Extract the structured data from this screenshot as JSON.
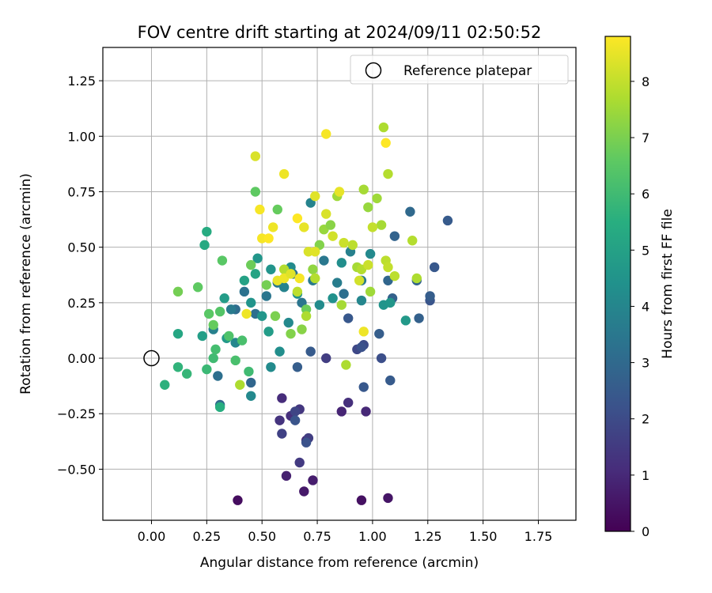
{
  "chart_data": {
    "type": "scatter",
    "title": "FOV centre drift starting at 2024/09/11 02:50:52",
    "xlabel": "Angular distance from reference (arcmin)",
    "ylabel": "Rotation from reference (arcmin)",
    "xlim": [
      -0.22,
      1.92
    ],
    "ylim": [
      -0.73,
      1.4
    ],
    "x_ticks": [
      "0.00",
      "0.25",
      "0.50",
      "0.75",
      "1.00",
      "1.25",
      "1.50",
      "1.75"
    ],
    "x_tick_values": [
      0,
      0.25,
      0.5,
      0.75,
      1.0,
      1.25,
      1.5,
      1.75
    ],
    "y_ticks": [
      "−0.50",
      "−0.25",
      "0.00",
      "0.25",
      "0.50",
      "0.75",
      "1.00",
      "1.25"
    ],
    "y_tick_values": [
      -0.5,
      -0.25,
      0,
      0.25,
      0.5,
      0.75,
      1.0,
      1.25
    ],
    "grid": true,
    "legend": {
      "label": "Reference platepar",
      "position": "top-right"
    },
    "colorbar": {
      "label": "Hours from first FF file",
      "colormap": "viridis",
      "range": [
        0,
        8.8
      ],
      "ticks": [
        "0",
        "1",
        "2",
        "3",
        "4",
        "5",
        "6",
        "7",
        "8"
      ],
      "tick_values": [
        0,
        1,
        2,
        3,
        4,
        5,
        6,
        7,
        8
      ]
    },
    "reference_point": {
      "x": 0,
      "y": 0
    },
    "series": [
      {
        "name": "drift",
        "points": [
          [
            0.39,
            -0.64,
            0.3
          ],
          [
            0.95,
            -0.64,
            0.4
          ],
          [
            1.07,
            -0.63,
            0.5
          ],
          [
            0.69,
            -0.6,
            0.6
          ],
          [
            0.73,
            -0.55,
            0.7
          ],
          [
            0.61,
            -0.53,
            0.8
          ],
          [
            0.86,
            -0.24,
            0.9
          ],
          [
            0.97,
            -0.24,
            1.0
          ],
          [
            0.7,
            -0.37,
            1.0
          ],
          [
            0.59,
            -0.18,
            1.1
          ],
          [
            0.89,
            -0.2,
            1.2
          ],
          [
            0.63,
            -0.26,
            1.2
          ],
          [
            0.58,
            -0.28,
            1.3
          ],
          [
            0.67,
            -0.23,
            1.4
          ],
          [
            0.67,
            -0.47,
            1.5
          ],
          [
            0.71,
            -0.36,
            1.6
          ],
          [
            0.59,
            -0.34,
            1.7
          ],
          [
            0.79,
            0.0,
            1.6
          ],
          [
            0.65,
            -0.24,
            1.8
          ],
          [
            0.93,
            0.04,
            1.9
          ],
          [
            0.96,
            0.06,
            2.0
          ],
          [
            1.04,
            0.0,
            2.1
          ],
          [
            0.7,
            -0.38,
            2.2
          ],
          [
            0.65,
            -0.28,
            2.3
          ],
          [
            0.96,
            -0.13,
            2.4
          ],
          [
            1.08,
            -0.1,
            2.5
          ],
          [
            0.66,
            -0.04,
            2.6
          ],
          [
            0.72,
            0.03,
            2.5
          ],
          [
            0.89,
            0.18,
            2.4
          ],
          [
            1.03,
            0.11,
            2.6
          ],
          [
            1.21,
            0.18,
            2.7
          ],
          [
            1.26,
            0.26,
            2.3
          ],
          [
            1.28,
            0.41,
            2.4
          ],
          [
            1.34,
            0.62,
            2.5
          ],
          [
            1.26,
            0.28,
            2.6
          ],
          [
            1.2,
            0.35,
            2.8
          ],
          [
            1.07,
            0.35,
            2.9
          ],
          [
            1.09,
            0.27,
            2.7
          ],
          [
            1.17,
            0.66,
            3.0
          ],
          [
            1.1,
            0.55,
            2.8
          ],
          [
            0.95,
            0.05,
            2.2
          ],
          [
            0.45,
            -0.11,
            2.9
          ],
          [
            0.31,
            -0.21,
            3.0
          ],
          [
            0.3,
            -0.08,
            3.2
          ],
          [
            0.38,
            0.22,
            3.1
          ],
          [
            0.42,
            0.3,
            3.3
          ],
          [
            0.47,
            0.2,
            3.2
          ],
          [
            0.52,
            0.28,
            3.4
          ],
          [
            0.57,
            0.34,
            3.5
          ],
          [
            0.64,
            0.38,
            3.3
          ],
          [
            0.68,
            0.25,
            3.4
          ],
          [
            0.73,
            0.35,
            3.6
          ],
          [
            0.78,
            0.44,
            3.5
          ],
          [
            0.84,
            0.34,
            3.7
          ],
          [
            0.87,
            0.29,
            3.2
          ],
          [
            0.9,
            0.48,
            3.8
          ],
          [
            0.95,
            0.35,
            3.6
          ],
          [
            0.6,
            0.32,
            3.9
          ],
          [
            0.72,
            0.7,
            3.9
          ],
          [
            0.36,
            0.22,
            3.6
          ],
          [
            0.28,
            0.13,
            3.8
          ],
          [
            0.38,
            0.07,
            4.0
          ],
          [
            0.45,
            -0.17,
            4.1
          ],
          [
            0.54,
            -0.04,
            4.2
          ],
          [
            0.58,
            0.03,
            4.3
          ],
          [
            0.62,
            0.16,
            4.1
          ],
          [
            0.66,
            0.29,
            4.4
          ],
          [
            0.76,
            0.24,
            4.2
          ],
          [
            0.82,
            0.27,
            4.4
          ],
          [
            0.95,
            0.26,
            4.0
          ],
          [
            1.05,
            0.24,
            4.5
          ],
          [
            1.08,
            0.25,
            4.6
          ],
          [
            1.15,
            0.17,
            4.7
          ],
          [
            0.86,
            0.43,
            4.3
          ],
          [
            0.99,
            0.47,
            4.1
          ],
          [
            0.63,
            0.41,
            4.2
          ],
          [
            0.54,
            0.4,
            4.5
          ],
          [
            0.48,
            0.45,
            4.6
          ],
          [
            0.45,
            0.25,
            4.5
          ],
          [
            0.5,
            0.19,
            4.6
          ],
          [
            0.53,
            0.12,
            4.8
          ],
          [
            0.34,
            0.09,
            4.7
          ],
          [
            0.23,
            0.1,
            4.9
          ],
          [
            0.33,
            0.27,
            4.8
          ],
          [
            0.42,
            0.35,
            5.0
          ],
          [
            0.47,
            0.38,
            5.1
          ],
          [
            0.12,
            0.11,
            5.2
          ],
          [
            0.24,
            0.51,
            5.3
          ],
          [
            0.25,
            0.57,
            5.4
          ],
          [
            0.31,
            -0.22,
            5.5
          ],
          [
            0.06,
            -0.12,
            5.6
          ],
          [
            0.12,
            -0.04,
            5.7
          ],
          [
            0.16,
            -0.07,
            5.8
          ],
          [
            0.25,
            -0.05,
            5.9
          ],
          [
            0.28,
            0.0,
            6.0
          ],
          [
            0.29,
            0.04,
            6.1
          ],
          [
            0.38,
            -0.01,
            6.2
          ],
          [
            0.44,
            -0.06,
            6.0
          ],
          [
            0.41,
            0.08,
            6.2
          ],
          [
            0.35,
            0.1,
            6.3
          ],
          [
            0.31,
            0.21,
            6.4
          ],
          [
            0.26,
            0.2,
            6.5
          ],
          [
            0.21,
            0.32,
            6.6
          ],
          [
            0.12,
            0.3,
            6.9
          ],
          [
            0.28,
            0.15,
            6.7
          ],
          [
            0.32,
            0.44,
            6.5
          ],
          [
            0.45,
            0.42,
            6.8
          ],
          [
            0.47,
            0.75,
            6.6
          ],
          [
            0.57,
            0.67,
            6.7
          ],
          [
            0.52,
            0.33,
            6.9
          ],
          [
            0.56,
            0.19,
            7.0
          ],
          [
            0.63,
            0.11,
            7.1
          ],
          [
            0.68,
            0.13,
            7.2
          ],
          [
            0.7,
            0.22,
            6.8
          ],
          [
            0.73,
            0.4,
            7.3
          ],
          [
            0.78,
            0.58,
            7.4
          ],
          [
            0.76,
            0.51,
            7.1
          ],
          [
            0.81,
            0.6,
            7.2
          ],
          [
            0.84,
            0.73,
            7.5
          ],
          [
            0.96,
            0.76,
            7.6
          ],
          [
            0.98,
            0.68,
            7.4
          ],
          [
            1.02,
            0.72,
            7.5
          ],
          [
            1.05,
            1.04,
            7.7
          ],
          [
            1.07,
            0.83,
            7.8
          ],
          [
            1.04,
            0.6,
            7.6
          ],
          [
            1.1,
            0.37,
            7.9
          ],
          [
            1.18,
            0.53,
            7.8
          ],
          [
            1.2,
            0.36,
            7.7
          ],
          [
            1.06,
            0.44,
            7.9
          ],
          [
            1.07,
            0.41,
            8.0
          ],
          [
            1.0,
            0.59,
            8.0
          ],
          [
            0.99,
            0.3,
            7.5
          ],
          [
            0.93,
            0.41,
            7.6
          ],
          [
            0.91,
            0.51,
            7.9
          ],
          [
            0.86,
            0.24,
            7.6
          ],
          [
            0.88,
            -0.03,
            7.7
          ],
          [
            0.74,
            0.36,
            7.8
          ],
          [
            0.7,
            0.19,
            7.7
          ],
          [
            0.66,
            0.3,
            7.9
          ],
          [
            0.6,
            0.4,
            7.8
          ],
          [
            0.4,
            -0.12,
            7.7
          ],
          [
            0.95,
            0.4,
            7.8
          ],
          [
            0.87,
            0.52,
            8.1
          ],
          [
            0.82,
            0.55,
            8.2
          ],
          [
            0.79,
            0.65,
            8.3
          ],
          [
            0.74,
            0.73,
            8.4
          ],
          [
            0.79,
            1.01,
            8.7
          ],
          [
            0.85,
            0.75,
            8.5
          ],
          [
            1.06,
            0.97,
            8.8
          ],
          [
            0.47,
            0.91,
            8.3
          ],
          [
            0.6,
            0.83,
            8.6
          ],
          [
            0.49,
            0.67,
            8.7
          ],
          [
            0.55,
            0.59,
            8.6
          ],
          [
            0.5,
            0.54,
            8.7
          ],
          [
            0.53,
            0.54,
            8.8
          ],
          [
            0.57,
            0.35,
            8.5
          ],
          [
            0.6,
            0.36,
            8.6
          ],
          [
            0.63,
            0.38,
            8.4
          ],
          [
            0.67,
            0.36,
            8.7
          ],
          [
            0.66,
            0.63,
            8.8
          ],
          [
            0.69,
            0.59,
            8.5
          ],
          [
            0.71,
            0.48,
            8.3
          ],
          [
            0.74,
            0.48,
            8.4
          ],
          [
            0.43,
            0.2,
            8.6
          ],
          [
            0.96,
            0.12,
            8.6
          ],
          [
            0.94,
            0.35,
            8.2
          ],
          [
            0.98,
            0.42,
            8.1
          ]
        ]
      }
    ]
  }
}
